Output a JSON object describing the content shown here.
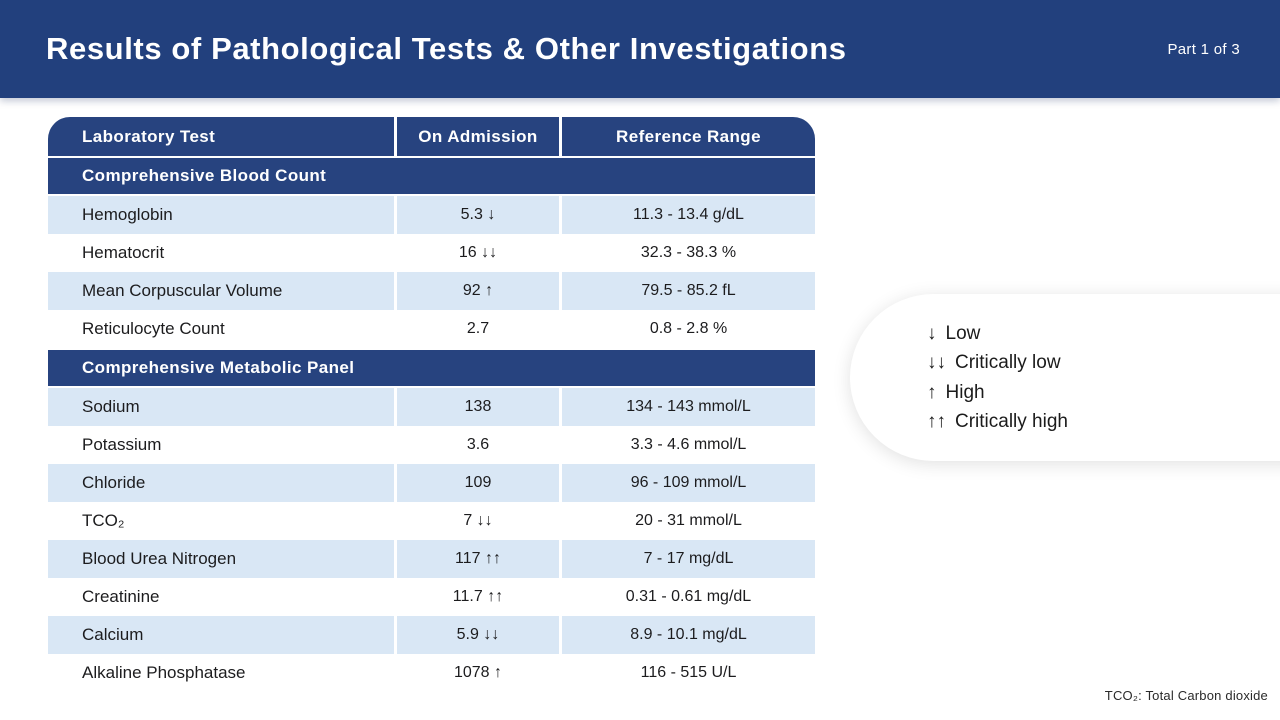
{
  "header": {
    "title": "Results of Pathological Tests & Other Investigations",
    "part": "Part 1 of 3"
  },
  "table": {
    "columns": [
      "Laboratory Test",
      "On Admission",
      "Reference Range"
    ],
    "sections": [
      {
        "title": "Comprehensive Blood Count",
        "rows": [
          {
            "test": "Hemoglobin",
            "value": "5.3",
            "flag": "↓",
            "range": "11.3 - 13.4 g/dL"
          },
          {
            "test": "Hematocrit",
            "value": "16",
            "flag": "↓↓",
            "range": "32.3 - 38.3 %"
          },
          {
            "test": "Mean Corpuscular Volume",
            "value": "92",
            "flag": "↑",
            "range": "79.5 - 85.2 fL"
          },
          {
            "test": "Reticulocyte Count",
            "value": "2.7",
            "flag": "",
            "range": "0.8 - 2.8 %"
          }
        ]
      },
      {
        "title": "Comprehensive Metabolic Panel",
        "rows": [
          {
            "test": "Sodium",
            "value": "138",
            "flag": "",
            "range": "134 - 143 mmol/L"
          },
          {
            "test": "Potassium",
            "value": "3.6",
            "flag": "",
            "range": "3.3 - 4.6 mmol/L"
          },
          {
            "test": "Chloride",
            "value": "109",
            "flag": "",
            "range": "96 - 109 mmol/L"
          },
          {
            "test": "TCO₂",
            "value": "7",
            "flag": "↓↓",
            "range": "20 - 31 mmol/L"
          },
          {
            "test": "Blood Urea Nitrogen",
            "value": "117",
            "flag": "↑↑",
            "range": "7 - 17 mg/dL"
          },
          {
            "test": "Creatinine",
            "value": "11.7",
            "flag": "↑↑",
            "range": "0.31 - 0.61 mg/dL"
          },
          {
            "test": "Calcium",
            "value": "5.9",
            "flag": "↓↓",
            "range": "8.9 - 10.1 mg/dL"
          },
          {
            "test": "Alkaline Phosphatase",
            "value": "1078",
            "flag": "↑",
            "range": "116 - 515 U/L"
          }
        ]
      }
    ]
  },
  "legend": {
    "items": [
      {
        "symbol": "↓",
        "label": "Low"
      },
      {
        "symbol": "↓↓",
        "label": "Critically low"
      },
      {
        "symbol": "↑",
        "label": "High"
      },
      {
        "symbol": "↑↑",
        "label": "Critically high"
      }
    ]
  },
  "footnote": "TCO₂: Total Carbon dioxide",
  "colors": {
    "banner_blue": "#22407D",
    "table_blue": "#27437F",
    "row_blue": "#D9E7F5",
    "text_dark": "#1C1C1E"
  }
}
